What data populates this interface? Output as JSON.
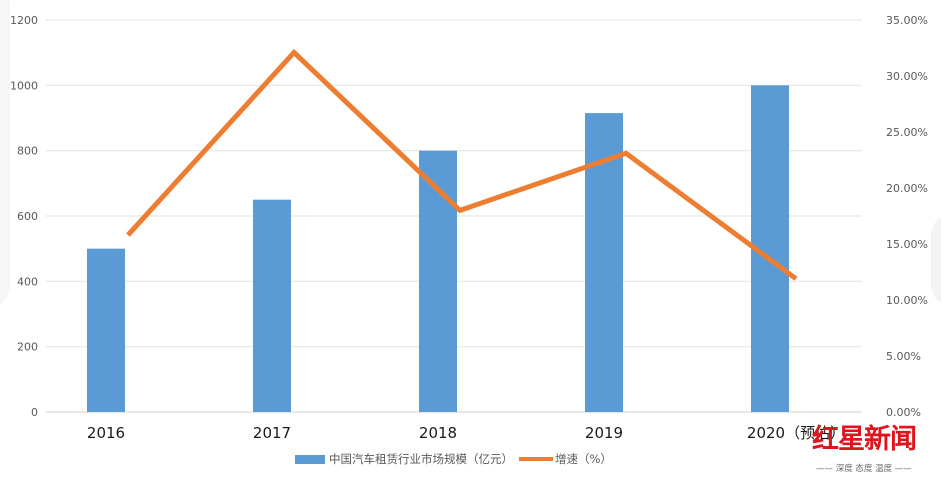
{
  "chart_data": {
    "type": "bar+line",
    "title": "",
    "categories": [
      "2016",
      "2017",
      "2018",
      "2019",
      "2020（预估）"
    ],
    "series": [
      {
        "name": "中国汽车租赁行业市场规模（亿元）",
        "type": "bar",
        "axis": "left",
        "color": "#5b9bd5",
        "values": [
          500,
          650,
          800,
          915,
          1000
        ]
      },
      {
        "name": "增速（%）",
        "type": "line",
        "axis": "right",
        "color": "#ed7d31",
        "values": [
          15.8,
          32.1,
          18.0,
          23.1,
          11.9
        ]
      }
    ],
    "left_axis": {
      "ylim": [
        0,
        1200
      ],
      "ticks": [
        "0",
        "200",
        "400",
        "600",
        "800",
        "1000",
        "1200"
      ]
    },
    "right_axis": {
      "ylim": [
        0,
        35
      ],
      "ticks": [
        "0.00%",
        "5.00%",
        "10.00%",
        "15.00%",
        "20.00%",
        "25.00%",
        "30.00%",
        "35.00%"
      ]
    },
    "grid": true,
    "legend_position": "bottom"
  },
  "legend": {
    "bar_label": "中国汽车租赁行业市场规模（亿元）",
    "line_label": "增速（%）"
  },
  "watermark": {
    "brand": "红星新闻",
    "slogan": "—— 深度 态度 温度 ——"
  }
}
